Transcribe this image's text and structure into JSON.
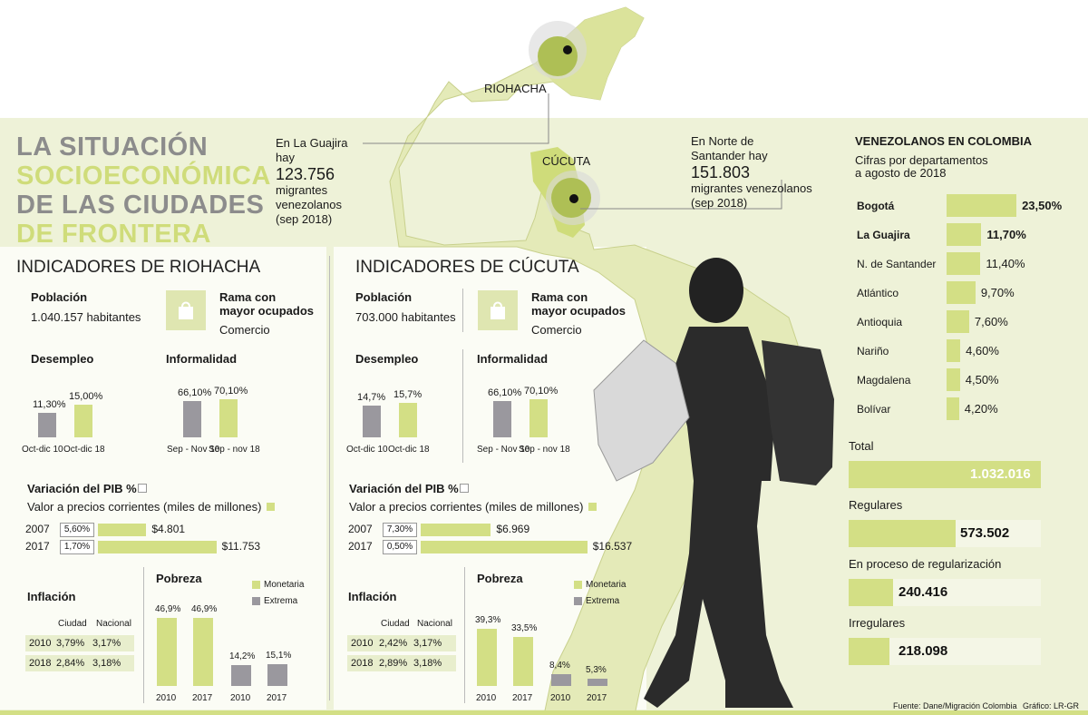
{
  "title": {
    "line1": "LA SITUACIÓN",
    "line2": "SOCIOECONÓMICA",
    "line3": "DE LAS CIUDADES",
    "line4": "DE FRONTERA"
  },
  "map": {
    "riohacha_label": "RIOHACHA",
    "cucuta_label": "CÚCUTA",
    "guajira_note": {
      "l1": "En La Guajira",
      "l2": "hay",
      "number": "123.756",
      "l3": "migrantes",
      "l4": "venezolanos",
      "l5": "(sep 2018)"
    },
    "santander_note": {
      "l1": "En Norte de",
      "l2": "Santander hay",
      "number": "151.803",
      "l3": "migrantes venezolanos",
      "l4": "(sep 2018)"
    }
  },
  "colors": {
    "green": "#d3df85",
    "grey": "#9a989e",
    "title_grey": "#8c8c8c",
    "title_green": "#cfdc7a",
    "background": "#eef2d8"
  },
  "riohacha": {
    "header": "INDICADORES DE RIOHACHA",
    "poblacion_label": "Población",
    "poblacion_value": "1.040.157 habitantes",
    "rama_l1": "Rama con",
    "rama_l2": "mayor ocupados",
    "rama_value": "Comercio",
    "desempleo_label": "Desempleo",
    "informalidad_label": "Informalidad",
    "pib_label": "Variación del PIB %",
    "pib_sub": "Valor a precios corrientes (miles de millones)",
    "inflacion_label": "Inflación",
    "inflacion_cols": [
      "Ciudad",
      "Nacional"
    ],
    "inflacion_rows": [
      {
        "year": "2010",
        "ciudad": "3,79%",
        "nacional": "3,17%"
      },
      {
        "year": "2018",
        "ciudad": "2,84%",
        "nacional": "3,18%"
      }
    ],
    "pobreza_label": "Pobreza",
    "legend_monetaria": "Monetaria",
    "legend_extrema": "Extrema"
  },
  "cucuta": {
    "header": "INDICADORES DE CÚCUTA",
    "poblacion_label": "Población",
    "poblacion_value": "703.000 habitantes",
    "rama_l1": "Rama con",
    "rama_l2": "mayor ocupados",
    "rama_value": "Comercio",
    "desempleo_label": "Desempleo",
    "informalidad_label": "Informalidad",
    "pib_label": "Variación del PIB %",
    "pib_sub": "Valor a precios corrientes (miles de millones)",
    "inflacion_label": "Inflación",
    "inflacion_cols": [
      "Ciudad",
      "Nacional"
    ],
    "inflacion_rows": [
      {
        "year": "2010",
        "ciudad": "2,42%",
        "nacional": "3,17%"
      },
      {
        "year": "2018",
        "ciudad": "2,89%",
        "nacional": "3,18%"
      }
    ],
    "pobreza_label": "Pobreza",
    "legend_monetaria": "Monetaria",
    "legend_extrema": "Extrema"
  },
  "venezolanos": {
    "title": "VENEZOLANOS EN COLOMBIA",
    "sub1": "Cifras por departamentos",
    "sub2": "a agosto de 2018",
    "totals": [
      {
        "label": "Total",
        "value": "1.032.016"
      },
      {
        "label": "Regulares",
        "value": "573.502"
      },
      {
        "label": "En proceso de regularización",
        "value": "240.416"
      },
      {
        "label": "Irregulares",
        "value": "218.098"
      }
    ]
  },
  "footer": {
    "source": "Fuente: Dane/Migración Colombia",
    "credit": "Gráfico: LR-GR"
  },
  "chart_data": [
    {
      "id": "riohacha-desempleo",
      "type": "bar",
      "title": "Desempleo",
      "categories": [
        "Oct-dic 10",
        "Oct-dic 18"
      ],
      "values": [
        11.3,
        15.0
      ],
      "labels": [
        "11,30%",
        "15,00%"
      ]
    },
    {
      "id": "riohacha-informalidad",
      "type": "bar",
      "title": "Informalidad",
      "categories": [
        "Sep - Nov 10",
        "Sep - nov 18"
      ],
      "values": [
        66.1,
        70.1
      ],
      "labels": [
        "66,10%",
        "70,10%"
      ]
    },
    {
      "id": "riohacha-pib",
      "type": "bar",
      "title": "Variación del PIB %",
      "categories": [
        "2007",
        "2017"
      ],
      "variacion": [
        "5,60%",
        "1,70%"
      ],
      "values": [
        4801,
        11753
      ],
      "labels": [
        "$4.801",
        "$11.753"
      ]
    },
    {
      "id": "riohacha-pobreza",
      "type": "bar",
      "title": "Pobreza",
      "categories": [
        "2010",
        "2017",
        "2010",
        "2017"
      ],
      "series": [
        {
          "name": "Monetaria",
          "values": [
            46.9,
            46.9,
            null,
            null
          ]
        },
        {
          "name": "Extrema",
          "values": [
            null,
            null,
            14.2,
            15.1
          ]
        }
      ],
      "labels": [
        "46,9%",
        "46,9%",
        "14,2%",
        "15,1%"
      ]
    },
    {
      "id": "cucuta-desempleo",
      "type": "bar",
      "title": "Desempleo",
      "categories": [
        "Oct-dic 10",
        "Oct-dic 18"
      ],
      "values": [
        14.7,
        15.7
      ],
      "labels": [
        "14,7%",
        "15,7%"
      ]
    },
    {
      "id": "cucuta-informalidad",
      "type": "bar",
      "title": "Informalidad",
      "categories": [
        "Sep - Nov 10",
        "Sep - nov 18"
      ],
      "values": [
        66.1,
        70.1
      ],
      "labels": [
        "66,10%",
        "70,10%"
      ]
    },
    {
      "id": "cucuta-pib",
      "type": "bar",
      "title": "Variación del PIB %",
      "categories": [
        "2007",
        "2017"
      ],
      "variacion": [
        "7,30%",
        "0,50%"
      ],
      "values": [
        6969,
        16537
      ],
      "labels": [
        "$6.969",
        "$16.537"
      ]
    },
    {
      "id": "cucuta-pobreza",
      "type": "bar",
      "title": "Pobreza",
      "categories": [
        "2010",
        "2017",
        "2010",
        "2017"
      ],
      "series": [
        {
          "name": "Monetaria",
          "values": [
            39.3,
            33.5,
            null,
            null
          ]
        },
        {
          "name": "Extrema",
          "values": [
            null,
            null,
            8.4,
            5.3
          ]
        }
      ],
      "labels": [
        "39,3%",
        "33,5%",
        "8,4%",
        "5,3%"
      ]
    },
    {
      "id": "venezolanos-departamentos",
      "type": "bar",
      "title": "VENEZOLANOS EN COLOMBIA",
      "categories": [
        "Bogotá",
        "La Guajira",
        "N. de Santander",
        "Atlántico",
        "Antioquia",
        "Nariño",
        "Magdalena",
        "Bolívar"
      ],
      "values": [
        23.5,
        11.7,
        11.4,
        9.7,
        7.6,
        4.6,
        4.5,
        4.2
      ],
      "labels": [
        "23,50%",
        "11,70%",
        "11,40%",
        "9,70%",
        "7,60%",
        "4,60%",
        "4,50%",
        "4,20%"
      ]
    },
    {
      "id": "venezolanos-totales",
      "type": "bar",
      "categories": [
        "Total",
        "Regulares",
        "En proceso de regularización",
        "Irregulares"
      ],
      "values": [
        1032016,
        573502,
        240416,
        218098
      ]
    }
  ]
}
